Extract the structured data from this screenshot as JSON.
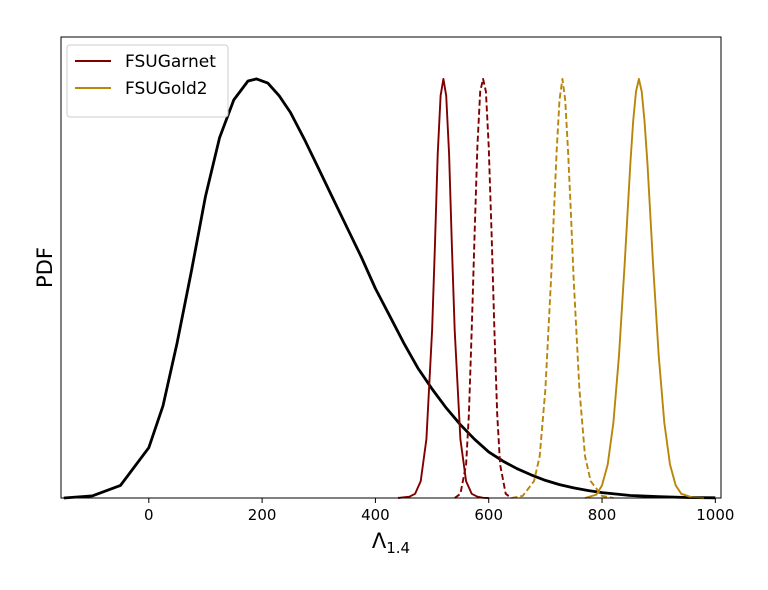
{
  "chart_data": {
    "type": "line",
    "title": "",
    "xlabel": "Λ",
    "xlabel_sub": "1.4",
    "ylabel": "PDF",
    "xlim": [
      -155,
      1010
    ],
    "ylim": [
      0,
      1.1
    ],
    "xticks": [
      0,
      200,
      400,
      600,
      800,
      1000
    ],
    "xtick_labels": [
      "0",
      "200",
      "400",
      "600",
      "800",
      "1000"
    ],
    "grid": false,
    "legend_position": "top-left",
    "series": [
      {
        "name": "",
        "color": "#000000",
        "dash": "solid",
        "x": [
          -150,
          -100,
          -50,
          0,
          25,
          50,
          75,
          100,
          125,
          150,
          175,
          190,
          210,
          230,
          250,
          275,
          300,
          325,
          350,
          375,
          400,
          425,
          450,
          475,
          500,
          525,
          550,
          575,
          600,
          625,
          650,
          675,
          700,
          725,
          750,
          775,
          800,
          850,
          900,
          950,
          1000
        ],
        "y": [
          0.0,
          0.005,
          0.03,
          0.12,
          0.22,
          0.37,
          0.54,
          0.72,
          0.86,
          0.95,
          0.995,
          1.0,
          0.99,
          0.96,
          0.92,
          0.855,
          0.785,
          0.715,
          0.645,
          0.575,
          0.5,
          0.435,
          0.37,
          0.31,
          0.26,
          0.215,
          0.175,
          0.14,
          0.11,
          0.088,
          0.07,
          0.055,
          0.042,
          0.032,
          0.024,
          0.018,
          0.013,
          0.006,
          0.003,
          0.0012,
          0.0005
        ]
      },
      {
        "name": "FSUGarnet",
        "color": "#800000",
        "dash": "solid",
        "x": [
          440,
          460,
          470,
          480,
          490,
          500,
          505,
          510,
          515,
          520,
          525,
          530,
          535,
          540,
          550,
          560,
          570,
          580,
          590,
          600
        ],
        "y": [
          0.0,
          0.003,
          0.01,
          0.04,
          0.14,
          0.4,
          0.6,
          0.82,
          0.96,
          1.0,
          0.96,
          0.82,
          0.6,
          0.4,
          0.14,
          0.04,
          0.01,
          0.003,
          0.0005,
          0.0
        ]
      },
      {
        "name": "",
        "color": "#800000",
        "dash": "dashed",
        "x": [
          540,
          550,
          560,
          565,
          570,
          575,
          580,
          585,
          590,
          595,
          600,
          605,
          610,
          615,
          620,
          630,
          640
        ],
        "y": [
          0.0,
          0.01,
          0.08,
          0.2,
          0.4,
          0.63,
          0.84,
          0.97,
          1.0,
          0.97,
          0.84,
          0.63,
          0.4,
          0.2,
          0.08,
          0.01,
          0.0
        ]
      },
      {
        "name": "",
        "color": "#B8860B",
        "dash": "dashed",
        "x": [
          640,
          660,
          680,
          690,
          700,
          710,
          715,
          720,
          725,
          730,
          735,
          740,
          745,
          750,
          760,
          770,
          780,
          800,
          820
        ],
        "y": [
          0.0,
          0.005,
          0.04,
          0.1,
          0.26,
          0.52,
          0.68,
          0.83,
          0.95,
          1.0,
          0.95,
          0.83,
          0.68,
          0.52,
          0.26,
          0.1,
          0.04,
          0.005,
          0.0
        ]
      },
      {
        "name": "FSUGold2",
        "color": "#B8860B",
        "dash": "solid",
        "x": [
          770,
          790,
          800,
          810,
          820,
          830,
          840,
          850,
          855,
          860,
          865,
          870,
          875,
          880,
          890,
          900,
          910,
          920,
          930,
          940,
          960,
          980
        ],
        "y": [
          0.0,
          0.008,
          0.03,
          0.08,
          0.18,
          0.34,
          0.56,
          0.8,
          0.9,
          0.97,
          1.0,
          0.97,
          0.9,
          0.8,
          0.56,
          0.34,
          0.18,
          0.08,
          0.03,
          0.01,
          0.001,
          0.0
        ]
      }
    ]
  }
}
